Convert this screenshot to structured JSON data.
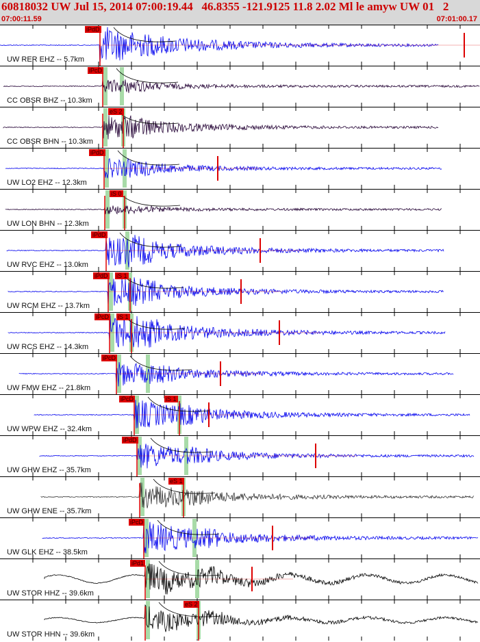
{
  "header": {
    "title": "60818032 UW Jul 15, 2014 07:00:19.44   46.8355 -121.9125 11.8 2.02 Ml le amyw UW 01   2",
    "time_start": "07:00:11.59",
    "time_end": "07:01:00.17"
  },
  "colors": {
    "header_bg": "#d8d8d8",
    "blue": "#0000ee",
    "red": "#dd0000",
    "green": "#a8dba8",
    "purple": "#330044"
  },
  "traces": [
    {
      "label": "UW RER EHZ -- 5.7km",
      "color": "#0000ee",
      "picks": [
        {
          "text": "iPdD"
        }
      ]
    },
    {
      "label": "CC OBSR BHZ -- 10.3km",
      "color": "#220033",
      "picks": [
        {
          "text": "iPcD"
        }
      ]
    },
    {
      "label": "CC OBSR BHN -- 10.3km",
      "color": "#220033",
      "picks": [
        {
          "text": "eS 2"
        }
      ]
    },
    {
      "label": "UW LO2 EHZ -- 12.3km",
      "color": "#0000ee",
      "picks": [
        {
          "text": "iPdD"
        }
      ]
    },
    {
      "label": "UW LON BHN -- 12.3km",
      "color": "#220033",
      "picks": [
        {
          "text": "iS 0"
        }
      ]
    },
    {
      "label": "UW RVC EHZ -- 13.0km",
      "color": "#0000ee",
      "picks": [
        {
          "text": "iPdD"
        }
      ]
    },
    {
      "label": "UW RCM EHZ -- 13.7km",
      "color": "#0000ee",
      "picks": [
        {
          "text": "iPdD"
        },
        {
          "text": "iS 1"
        }
      ]
    },
    {
      "label": "UW RCS EHZ -- 14.3km",
      "color": "#0000ee",
      "picks": [
        {
          "text": "iPcD"
        },
        {
          "text": "iS 1"
        }
      ]
    },
    {
      "label": "UW FMW EHZ -- 21.8km",
      "color": "#0000ee",
      "picks": [
        {
          "text": "iPcD"
        }
      ]
    },
    {
      "label": "UW WPW EHZ -- 32.4km",
      "color": "#0000ee",
      "picks": [
        {
          "text": "iPcD"
        },
        {
          "text": "iS 1"
        }
      ]
    },
    {
      "label": "UW GHW EHZ -- 35.7km",
      "color": "#0000ee",
      "picks": [
        {
          "text": "iPdD"
        }
      ]
    },
    {
      "label": "UW GHW ENE -- 35.7km",
      "color": "#333333",
      "picks": [
        {
          "text": "eS 1"
        }
      ]
    },
    {
      "label": "UW GLK EHZ -- 38.5km",
      "color": "#0000ee",
      "picks": [
        {
          "text": "iPcD"
        }
      ]
    },
    {
      "label": "UW STOR HHZ -- 39.6km",
      "color": "#000000",
      "picks": [
        {
          "text": "iPd1"
        }
      ]
    },
    {
      "label": "UW STOR HHN -- 39.6km",
      "color": "#000000",
      "picks": [
        {
          "text": "eS 2"
        }
      ]
    }
  ]
}
